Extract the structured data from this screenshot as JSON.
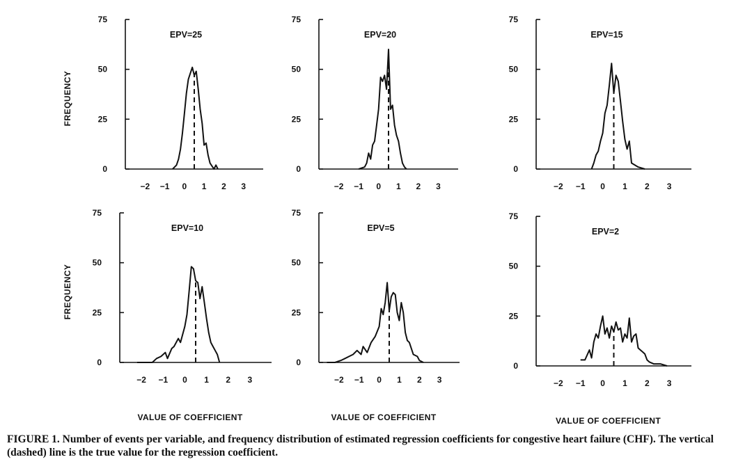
{
  "caption": "FIGURE 1. Number of events per variable, and frequency distribution of estimated regression coefficients for congestive heart failure (CHF). The vertical (dashed) line is the true value for the regression coefficient.",
  "chart_data": [
    {
      "type": "line",
      "title": "EPV=25",
      "ylabel": "FREQUENCY",
      "xlabel": "",
      "xlim": [
        -3,
        4
      ],
      "ylim": [
        0,
        75
      ],
      "xticks": [
        -2,
        -1,
        0,
        1,
        2,
        3
      ],
      "yticks": [
        0,
        25,
        50,
        75
      ],
      "true_value": 0.5,
      "x": [
        -0.6,
        -0.4,
        -0.3,
        -0.2,
        -0.1,
        0.0,
        0.1,
        0.2,
        0.3,
        0.4,
        0.5,
        0.6,
        0.7,
        0.8,
        0.9,
        1.0,
        1.1,
        1.2,
        1.3,
        1.5,
        1.6,
        1.7
      ],
      "y": [
        0,
        2,
        5,
        10,
        18,
        28,
        38,
        45,
        48,
        51,
        47,
        49,
        40,
        30,
        23,
        12,
        13,
        7,
        3,
        0,
        2,
        0
      ]
    },
    {
      "type": "line",
      "title": "EPV=20",
      "ylabel": "",
      "xlabel": "",
      "xlim": [
        -3,
        4
      ],
      "ylim": [
        0,
        75
      ],
      "xticks": [
        -2,
        -1,
        0,
        1,
        2,
        3
      ],
      "yticks": [
        0,
        25,
        50,
        75
      ],
      "true_value": 0.5,
      "x": [
        -1.0,
        -0.7,
        -0.6,
        -0.5,
        -0.4,
        -0.3,
        -0.2,
        -0.1,
        0.0,
        0.1,
        0.2,
        0.3,
        0.4,
        0.5,
        0.6,
        0.7,
        0.8,
        0.9,
        1.0,
        1.1,
        1.2,
        1.3,
        1.4
      ],
      "y": [
        0,
        1,
        3,
        8,
        5,
        12,
        14,
        22,
        30,
        46,
        44,
        47,
        40,
        60,
        30,
        32,
        22,
        17,
        14,
        8,
        3,
        1,
        0
      ]
    },
    {
      "type": "line",
      "title": "EPV=15",
      "ylabel": "",
      "xlabel": "",
      "xlim": [
        -3,
        4
      ],
      "ylim": [
        0,
        75
      ],
      "xticks": [
        -2,
        -1,
        0,
        1,
        2,
        3
      ],
      "yticks": [
        0,
        25,
        50,
        75
      ],
      "true_value": 0.5,
      "x": [
        -0.5,
        -0.4,
        -0.3,
        -0.2,
        -0.1,
        0.0,
        0.1,
        0.2,
        0.3,
        0.4,
        0.5,
        0.6,
        0.7,
        0.8,
        0.9,
        1.0,
        1.1,
        1.2,
        1.3,
        1.6,
        1.9
      ],
      "y": [
        0,
        3,
        7,
        9,
        14,
        18,
        28,
        32,
        42,
        53,
        38,
        47,
        44,
        34,
        24,
        15,
        10,
        14,
        3,
        1,
        0
      ]
    },
    {
      "type": "line",
      "title": "EPV=10",
      "ylabel": "FREQUENCY",
      "xlabel": "VALUE OF COEFFICIENT",
      "xlim": [
        -3,
        4
      ],
      "ylim": [
        0,
        75
      ],
      "xticks": [
        -2,
        -1,
        0,
        1,
        2,
        3
      ],
      "yticks": [
        0,
        25,
        50,
        75
      ],
      "true_value": 0.5,
      "x": [
        -2.2,
        -1.5,
        -1.3,
        -1.1,
        -0.9,
        -0.8,
        -0.6,
        -0.5,
        -0.3,
        -0.2,
        0.0,
        0.1,
        0.2,
        0.3,
        0.4,
        0.5,
        0.6,
        0.7,
        0.8,
        0.9,
        1.0,
        1.1,
        1.2,
        1.3,
        1.4,
        1.5,
        1.6
      ],
      "y": [
        0,
        0,
        2,
        3,
        5,
        2,
        7,
        8,
        12,
        10,
        18,
        24,
        36,
        48,
        47,
        41,
        40,
        32,
        38,
        30,
        22,
        15,
        10,
        8,
        6,
        4,
        0
      ]
    },
    {
      "type": "line",
      "title": "EPV=5",
      "ylabel": "",
      "xlabel": "VALUE OF COEFFICIENT",
      "xlim": [
        -3,
        4
      ],
      "ylim": [
        0,
        75
      ],
      "xticks": [
        -2,
        -1,
        0,
        1,
        2,
        3
      ],
      "yticks": [
        0,
        25,
        50,
        75
      ],
      "true_value": 0.5,
      "x": [
        -2.6,
        -2.2,
        -1.9,
        -1.7,
        -1.5,
        -1.3,
        -1.1,
        -0.9,
        -0.8,
        -0.6,
        -0.4,
        -0.2,
        0.0,
        0.1,
        0.2,
        0.3,
        0.4,
        0.5,
        0.6,
        0.7,
        0.8,
        0.9,
        1.0,
        1.1,
        1.2,
        1.3,
        1.4,
        1.5,
        1.7,
        1.9,
        2.0,
        2.2
      ],
      "y": [
        0,
        0,
        1,
        2,
        3,
        4,
        6,
        4,
        8,
        5,
        10,
        13,
        18,
        27,
        24,
        30,
        40,
        26,
        33,
        35,
        34,
        25,
        21,
        30,
        25,
        15,
        11,
        10,
        4,
        3,
        1,
        0
      ]
    },
    {
      "type": "line",
      "title": "EPV=2",
      "ylabel": "",
      "xlabel": "VALUE OF COEFFICIENT",
      "xlim": [
        -3,
        4
      ],
      "ylim": [
        0,
        75
      ],
      "xticks": [
        -2,
        -1,
        0,
        1,
        2,
        3
      ],
      "yticks": [
        0,
        25,
        50,
        75
      ],
      "true_value": 0.5,
      "x": [
        -1.0,
        -0.8,
        -0.6,
        -0.5,
        -0.4,
        -0.3,
        -0.2,
        -0.1,
        0.0,
        0.1,
        0.2,
        0.3,
        0.4,
        0.5,
        0.6,
        0.7,
        0.8,
        0.9,
        1.0,
        1.1,
        1.2,
        1.3,
        1.4,
        1.5,
        1.6,
        1.7,
        1.8,
        1.9,
        2.0,
        2.1,
        2.3,
        2.6,
        2.9
      ],
      "y": [
        3,
        3,
        8,
        4,
        12,
        16,
        14,
        20,
        25,
        16,
        19,
        14,
        20,
        17,
        22,
        18,
        19,
        12,
        16,
        14,
        24,
        12,
        15,
        16,
        9,
        8,
        7,
        6,
        3,
        2,
        1,
        1,
        0
      ]
    }
  ]
}
